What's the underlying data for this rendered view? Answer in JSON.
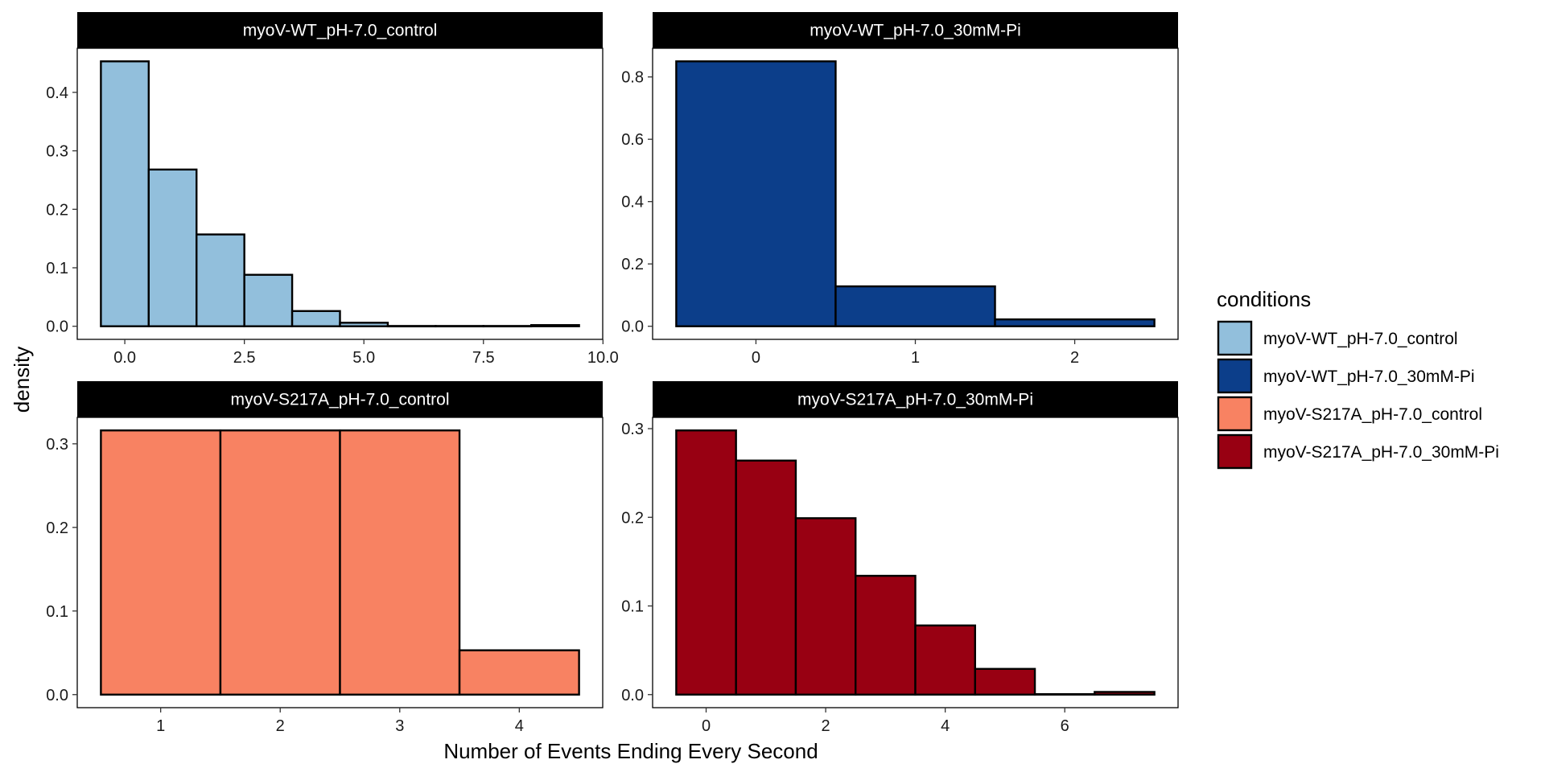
{
  "chart_data": {
    "type": "bar",
    "subtype": "faceted-histogram",
    "xlabel": "Number of Events Ending Every Second",
    "ylabel": "density",
    "legend": {
      "title": "conditions",
      "position": "right",
      "items": [
        {
          "label": "myoV-WT_pH-7.0_control",
          "color": "#92BFDC"
        },
        {
          "label": "myoV-WT_pH-7.0_30mM-Pi",
          "color": "#0C3E8A"
        },
        {
          "label": "myoV-S217A_pH-7.0_control",
          "color": "#F88262"
        },
        {
          "label": "myoV-S217A_pH-7.0_30mM-Pi",
          "color": "#980012"
        }
      ]
    },
    "panels": [
      {
        "title": "myoV-WT_pH-7.0_control",
        "color": "#92BFDC",
        "xlim": [
          -0.5,
          9.5
        ],
        "ylim": [
          0,
          0.453
        ],
        "xticks": [
          0,
          2.5,
          5,
          7.5,
          10
        ],
        "xtick_labels": [
          "0.0",
          "2.5",
          "5.0",
          "7.5",
          "10.0"
        ],
        "yticks": [
          0,
          0.1,
          0.2,
          0.3,
          0.4
        ],
        "ytick_labels": [
          "0.0",
          "0.1",
          "0.2",
          "0.3",
          "0.4"
        ],
        "bin_width": 1,
        "bins": [
          0,
          1,
          2,
          3,
          4,
          5,
          6,
          7,
          8,
          9
        ],
        "values": [
          0.453,
          0.268,
          0.157,
          0.088,
          0.026,
          0.006,
          0.0005,
          0.0005,
          0.0005,
          0.002
        ]
      },
      {
        "title": "myoV-WT_pH-7.0_30mM-Pi",
        "color": "#0C3E8A",
        "xlim": [
          -0.5,
          2.5
        ],
        "ylim": [
          0,
          0.85
        ],
        "xticks": [
          0,
          1,
          2
        ],
        "xtick_labels": [
          "0",
          "1",
          "2"
        ],
        "yticks": [
          0,
          0.2,
          0.4,
          0.6,
          0.8
        ],
        "ytick_labels": [
          "0.0",
          "0.2",
          "0.4",
          "0.6",
          "0.8"
        ],
        "bin_width": 1,
        "bins": [
          0,
          1,
          2
        ],
        "values": [
          0.85,
          0.128,
          0.022
        ]
      },
      {
        "title": "myoV-S217A_pH-7.0_control",
        "color": "#F88262",
        "xlim": [
          0.5,
          4.5
        ],
        "ylim": [
          0,
          0.316
        ],
        "xticks": [
          1,
          2,
          3,
          4
        ],
        "xtick_labels": [
          "1",
          "2",
          "3",
          "4"
        ],
        "yticks": [
          0,
          0.1,
          0.2,
          0.3
        ],
        "ytick_labels": [
          "0.0",
          "0.1",
          "0.2",
          "0.3"
        ],
        "bin_width": 1,
        "bins": [
          1,
          2,
          3,
          4
        ],
        "values": [
          0.316,
          0.316,
          0.316,
          0.053
        ]
      },
      {
        "title": "myoV-S217A_pH-7.0_30mM-Pi",
        "color": "#980012",
        "xlim": [
          -0.5,
          7.5
        ],
        "ylim": [
          0,
          0.298
        ],
        "xticks": [
          0,
          2,
          4,
          6
        ],
        "xtick_labels": [
          "0",
          "2",
          "4",
          "6"
        ],
        "yticks": [
          0,
          0.1,
          0.2,
          0.3
        ],
        "ytick_labels": [
          "0.0",
          "0.1",
          "0.2",
          "0.3"
        ],
        "bin_width": 1,
        "bins": [
          0,
          1,
          2,
          3,
          4,
          5,
          6,
          7
        ],
        "values": [
          0.298,
          0.264,
          0.199,
          0.134,
          0.078,
          0.029,
          0.0005,
          0.003
        ]
      }
    ]
  }
}
